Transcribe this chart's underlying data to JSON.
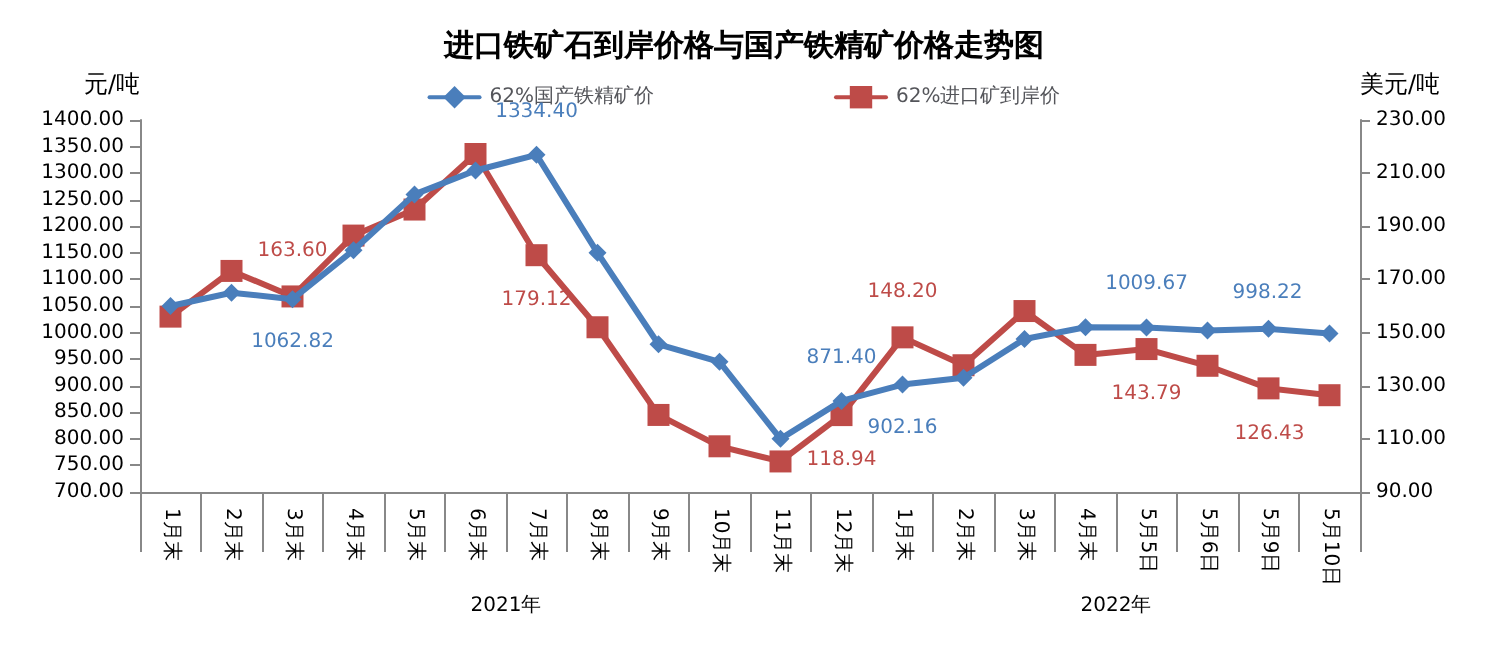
{
  "chart_data": {
    "type": "line",
    "title": "进口铁矿石到岸价格与国产铁精矿价格走势图",
    "ylabel": "元/吨",
    "y2label": "美元/吨",
    "categories": [
      "1月末",
      "2月末",
      "3月末",
      "4月末",
      "5月末",
      "6月末",
      "7月末",
      "8月末",
      "9月末",
      "10月末",
      "11月末",
      "12月末",
      "1月末",
      "2月末",
      "3月末",
      "4月末",
      "5月5日",
      "5月6日",
      "5月9日",
      "5月10日"
    ],
    "series": [
      {
        "name": "62%国产铁精矿价",
        "color": "#4a7ebb",
        "marker": "diamond",
        "values": [
          1050,
          1075,
          1062.82,
          1155,
          1260,
          1305,
          1334.4,
          1150,
          978,
          945,
          800,
          871.4,
          902.16,
          915,
          988,
          1010,
          1009.67,
          1004,
          1007,
          998.22
        ],
        "value_labels": [
          null,
          null,
          "1062.82",
          null,
          null,
          null,
          "1334.40",
          null,
          null,
          null,
          null,
          "871.40",
          "902.16",
          null,
          null,
          null,
          "1009.67",
          null,
          null,
          "998.22"
        ]
      },
      {
        "name": "62%进口矿到岸价",
        "color": "#be4b48",
        "marker": "square",
        "axis": "y2",
        "values": [
          156,
          173.2,
          163.6,
          186.5,
          196.3,
          217.2,
          179.12,
          152,
          119,
          107.2,
          101.5,
          118.94,
          148.2,
          137.7,
          158.1,
          141.6,
          143.79,
          137.5,
          129,
          126.43
        ],
        "value_labels": [
          null,
          null,
          "163.60",
          null,
          null,
          null,
          "179.12",
          null,
          null,
          null,
          null,
          "118.94",
          "148.20",
          null,
          null,
          null,
          "143.79",
          null,
          null,
          "126.43"
        ]
      }
    ],
    "ylim": [
      700,
      1400
    ],
    "yticks": [
      {
        "value": 700,
        "label": "700.00"
      },
      {
        "value": 750,
        "label": "750.00"
      },
      {
        "value": 800,
        "label": "800.00"
      },
      {
        "value": 850,
        "label": "850.00"
      },
      {
        "value": 900,
        "label": "900.00"
      },
      {
        "value": 950,
        "label": "950.00"
      },
      {
        "value": 1000,
        "label": "1000.00"
      },
      {
        "value": 1050,
        "label": "1050.00"
      },
      {
        "value": 1100,
        "label": "1100.00"
      },
      {
        "value": 1150,
        "label": "1150.00"
      },
      {
        "value": 1200,
        "label": "1200.00"
      },
      {
        "value": 1250,
        "label": "1250.00"
      },
      {
        "value": 1300,
        "label": "1300.00"
      },
      {
        "value": 1350,
        "label": "1350.00"
      },
      {
        "value": 1400,
        "label": "1400.00"
      }
    ],
    "y2lim": [
      90,
      230
    ],
    "y2ticks": [
      {
        "value": 90,
        "label": "90.00"
      },
      {
        "value": 110,
        "label": "110.00"
      },
      {
        "value": 130,
        "label": "130.00"
      },
      {
        "value": 150,
        "label": "150.00"
      },
      {
        "value": 170,
        "label": "170.00"
      },
      {
        "value": 190,
        "label": "190.00"
      },
      {
        "value": 210,
        "label": "210.00"
      },
      {
        "value": 230,
        "label": "230.00"
      }
    ],
    "annotations": [
      "2021年",
      "2022年"
    ],
    "legend": "top",
    "grid": false,
    "line_style": "solid"
  }
}
